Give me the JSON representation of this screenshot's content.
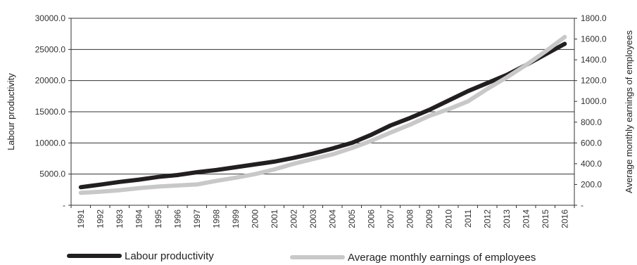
{
  "chart_data": {
    "type": "line",
    "x": [
      "1991",
      "1992",
      "1993",
      "1994",
      "1995",
      "1996",
      "1997",
      "1998",
      "1999",
      "2000",
      "2001",
      "2002",
      "2003",
      "2004",
      "2005",
      "2006",
      "2007",
      "2008",
      "2009",
      "2010",
      "2011",
      "2012",
      "2013",
      "2014",
      "2015",
      "2016"
    ],
    "series": [
      {
        "name": "Labour productivity",
        "axis": "left",
        "color": "#231f20",
        "values": [
          2900,
          3300,
          3750,
          4100,
          4550,
          4850,
          5300,
          5650,
          6100,
          6550,
          7000,
          7600,
          8300,
          9100,
          10000,
          11300,
          12800,
          14000,
          15300,
          16800,
          18300,
          19600,
          20900,
          22500,
          24200,
          25900
        ]
      },
      {
        "name": "Average monthly earnings of employees",
        "axis": "right",
        "color": "#c8c8c8",
        "values": [
          120,
          130,
          145,
          165,
          180,
          190,
          200,
          235,
          265,
          300,
          345,
          400,
          445,
          490,
          550,
          620,
          700,
          775,
          860,
          925,
          1000,
          1120,
          1230,
          1350,
          1480,
          1620
        ]
      }
    ],
    "ylabel": "Labour productivity",
    "y2label": "Average monthly earnings of employees",
    "ylim": [
      0,
      30000
    ],
    "y2lim": [
      0,
      1800
    ],
    "yticks": [
      "-",
      "5000.0",
      "10000.0",
      "15000.0",
      "20000.0",
      "25000.0",
      "30000.0"
    ],
    "y2ticks": [
      "-",
      "200.0",
      "400.0",
      "600.0",
      "800.0",
      "1000.0",
      "1200.0",
      "1400.0",
      "1600.0",
      "1800.0"
    ],
    "grid": true,
    "legend": "bottom"
  }
}
